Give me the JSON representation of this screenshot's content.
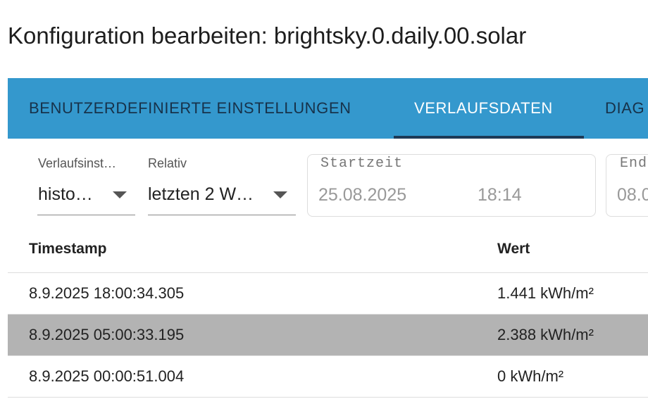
{
  "header": {
    "title": "Konfiguration bearbeiten: brightsky.0.daily.00.solar"
  },
  "tabs": [
    "BENUTZERDEFINIERTE EINSTELLUNGEN",
    "VERLAUFSDATEN",
    "DIAG"
  ],
  "filters": {
    "instance": {
      "label": "Verlaufsinst…",
      "value": "histo…"
    },
    "relative": {
      "label": "Relativ",
      "value": "letzten 2 W…"
    },
    "start": {
      "label": "Startzeit",
      "date": "25.08.2025",
      "time": "18:14"
    },
    "end": {
      "label": "End",
      "date": "08.0"
    }
  },
  "table": {
    "columns": [
      "Timestamp",
      "Wert"
    ],
    "rows": [
      [
        "8.9.2025 18:00:34.305",
        "1.441 kWh/m²"
      ],
      [
        "8.9.2025 05:00:33.195",
        "2.388 kWh/m²"
      ],
      [
        "8.9.2025 00:00:51.004",
        "0 kWh/m²"
      ]
    ]
  }
}
